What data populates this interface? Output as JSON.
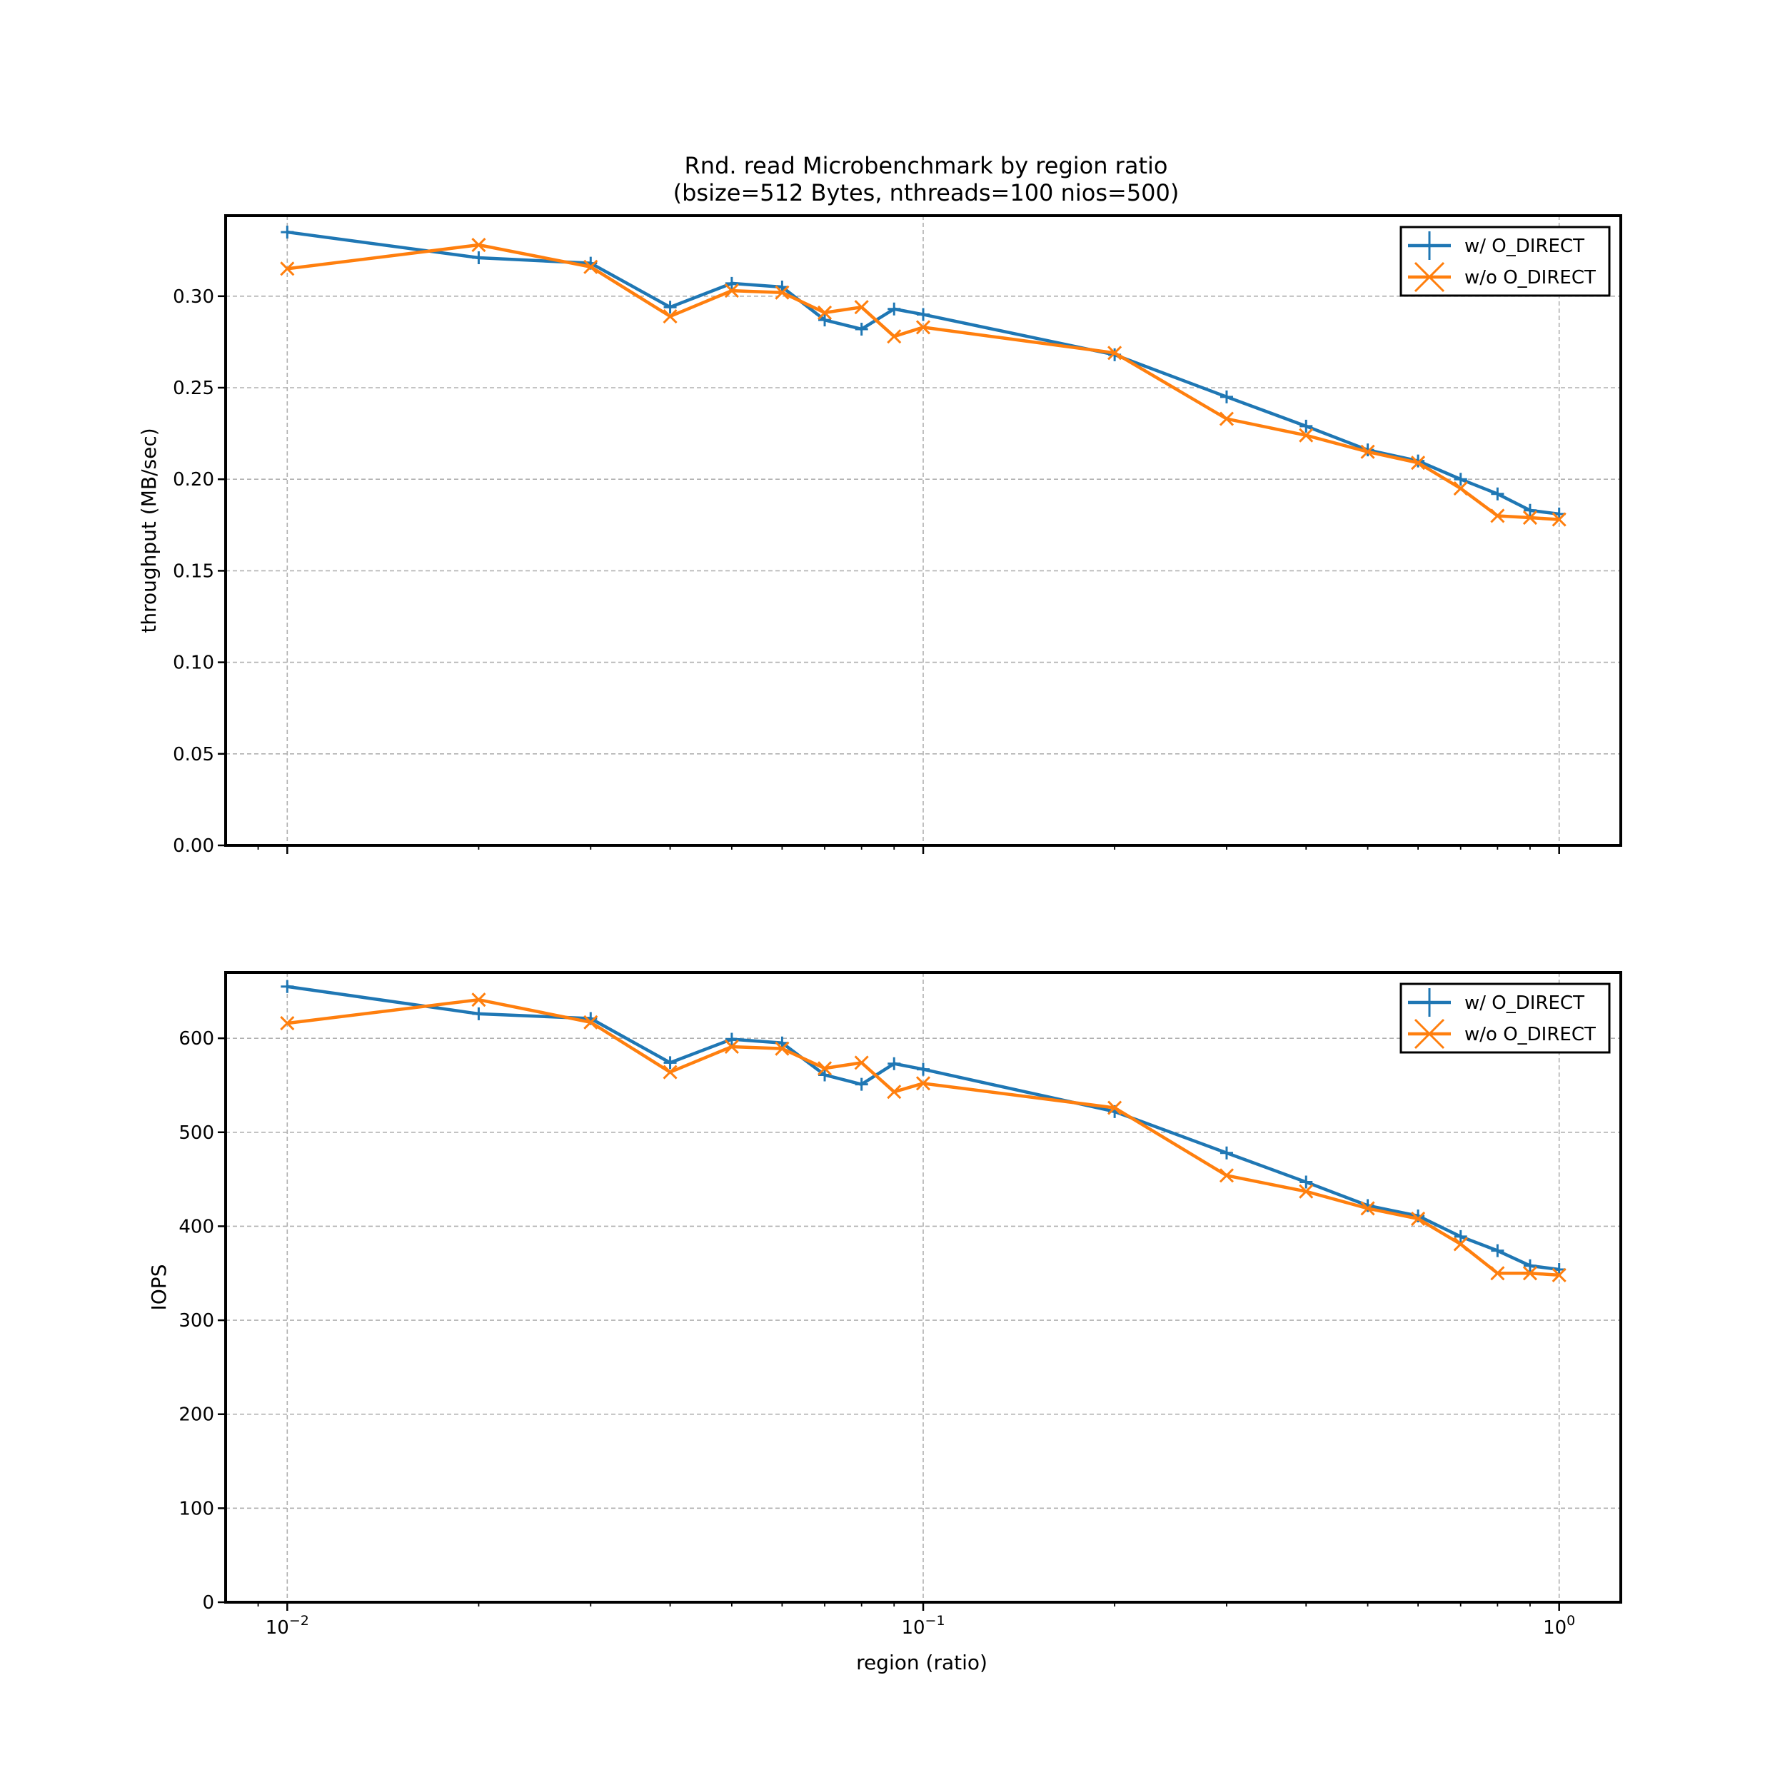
{
  "figure": {
    "title_line1": "Rnd. read Microbenchmark by region ratio",
    "title_line2": "(bsize=512 Bytes, nthreads=100 nios=500)"
  },
  "chart_data": [
    {
      "type": "line",
      "panel": "top",
      "xlabel": "",
      "ylabel": "throughput (MB/sec)",
      "xscale": "log",
      "xlim": [
        0.008,
        1.25
      ],
      "ylim": [
        0,
        0.344
      ],
      "yticks": [
        0.0,
        0.05,
        0.1,
        0.15,
        0.2,
        0.25,
        0.3
      ],
      "ytick_labels": [
        "0.00",
        "0.05",
        "0.10",
        "0.15",
        "0.20",
        "0.25",
        "0.30"
      ],
      "grid": true,
      "legend_position": "top-right",
      "x": [
        0.01,
        0.02,
        0.03,
        0.04,
        0.05,
        0.06,
        0.07,
        0.08,
        0.09,
        0.1,
        0.2,
        0.3,
        0.4,
        0.5,
        0.6,
        0.7,
        0.8,
        0.9,
        1.0
      ],
      "series": [
        {
          "name": "w/ O_DIRECT",
          "color": "#1f77b4",
          "marker": "plus",
          "values": [
            0.335,
            0.321,
            0.318,
            0.294,
            0.307,
            0.305,
            0.287,
            0.282,
            0.293,
            0.29,
            0.268,
            0.245,
            0.229,
            0.216,
            0.21,
            0.2,
            0.192,
            0.183,
            0.181
          ]
        },
        {
          "name": "w/o O_DIRECT",
          "color": "#ff7f0e",
          "marker": "x",
          "values": [
            0.315,
            0.328,
            0.316,
            0.289,
            0.303,
            0.302,
            0.291,
            0.294,
            0.278,
            0.283,
            0.269,
            0.233,
            0.224,
            0.215,
            0.209,
            0.195,
            0.18,
            0.179,
            0.178
          ]
        }
      ]
    },
    {
      "type": "line",
      "panel": "bottom",
      "xlabel": "region (ratio)",
      "ylabel": "IOPS",
      "xscale": "log",
      "xlim": [
        0.008,
        1.25
      ],
      "ylim": [
        0,
        670
      ],
      "yticks": [
        0,
        100,
        200,
        300,
        400,
        500,
        600
      ],
      "ytick_labels": [
        "0",
        "100",
        "200",
        "300",
        "400",
        "500",
        "600"
      ],
      "xticks": [
        0.01,
        0.1,
        1.0
      ],
      "xtick_labels": [
        {
          "base": "10",
          "exp": "−2"
        },
        {
          "base": "10",
          "exp": "−1"
        },
        {
          "base": "10",
          "exp": "0"
        }
      ],
      "grid": true,
      "legend_position": "top-right",
      "x": [
        0.01,
        0.02,
        0.03,
        0.04,
        0.05,
        0.06,
        0.07,
        0.08,
        0.09,
        0.1,
        0.2,
        0.3,
        0.4,
        0.5,
        0.6,
        0.7,
        0.8,
        0.9,
        1.0
      ],
      "series": [
        {
          "name": "w/ O_DIRECT",
          "color": "#1f77b4",
          "marker": "plus",
          "values": [
            655,
            626,
            621,
            574,
            599,
            595,
            561,
            551,
            573,
            567,
            522,
            478,
            447,
            422,
            411,
            389,
            374,
            358,
            354
          ]
        },
        {
          "name": "w/o O_DIRECT",
          "color": "#ff7f0e",
          "marker": "x",
          "values": [
            616,
            641,
            617,
            564,
            591,
            589,
            568,
            574,
            543,
            552,
            526,
            454,
            437,
            419,
            408,
            381,
            350,
            350,
            348
          ]
        }
      ]
    }
  ]
}
